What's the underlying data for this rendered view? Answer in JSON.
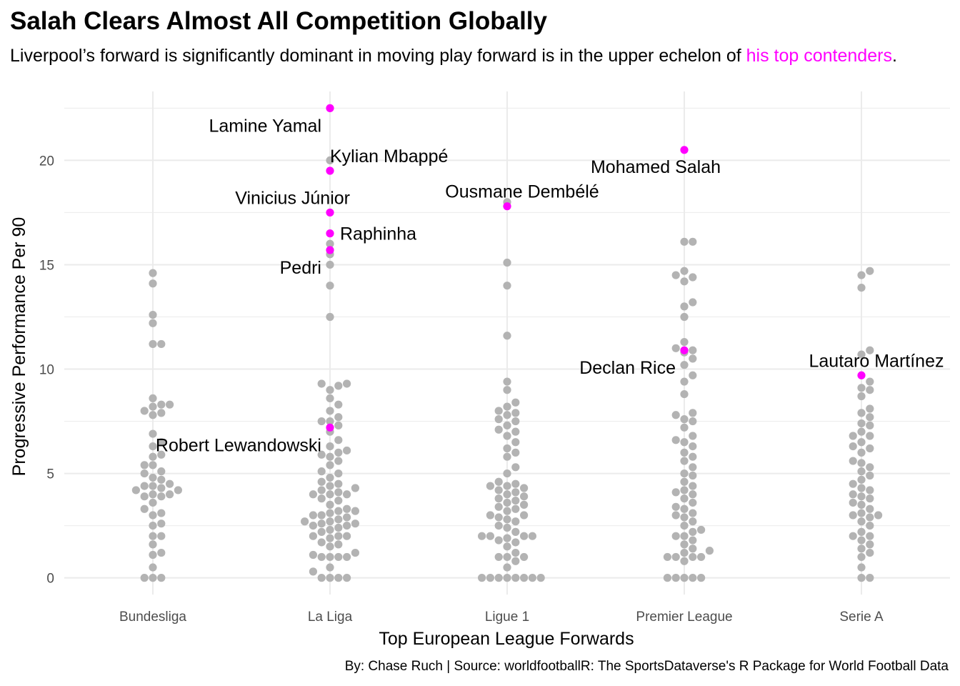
{
  "title": "Salah Clears Almost All Competition Globally",
  "subtitle": {
    "text": "Liverpool’s forward is significantly dominant in moving play forward is in the upper echelon of",
    "highlight": "his top contenders",
    "end": "."
  },
  "caption": "By: Chase Ruch | Source: worldfootballR: The SportsDataverse's R Package for World Football Data",
  "colors": {
    "base": "#b3b3b3",
    "highlight": "#ff00ff",
    "grid": "#ebebeb"
  },
  "chart_data": {
    "type": "scatter",
    "xlabel": "Top European League Forwards",
    "ylabel": "Progressive Performance Per 90",
    "categories": [
      "Bundesliga",
      "La Liga",
      "Ligue 1",
      "Premier League",
      "Serie A"
    ],
    "ylim": [
      -0.8,
      23.3
    ],
    "yticks": [
      0,
      5,
      10,
      15,
      20
    ],
    "grid": true,
    "legend": "none",
    "series": [
      {
        "category": "Bundesliga",
        "values": [
          14.6,
          14.1,
          12.6,
          12.2,
          11.2,
          11.2,
          8.6,
          8.3,
          8.3,
          8.2,
          8.0,
          7.9,
          7.8,
          6.9,
          6.5,
          6.3,
          5.9,
          5.8,
          5.4,
          5.4,
          5.1,
          5.0,
          4.8,
          4.7,
          4.5,
          4.4,
          4.4,
          4.3,
          4.2,
          4.2,
          4.0,
          4.0,
          3.9,
          3.9,
          3.6,
          3.3,
          3.1,
          3.0,
          2.6,
          2.5,
          2.0,
          2.0,
          1.6,
          1.2,
          1.1,
          0.5,
          0,
          0,
          0
        ]
      },
      {
        "category": "La Liga",
        "values": [
          20.0,
          16.0,
          15.5,
          15.0,
          14.0,
          12.5,
          9.3,
          9.3,
          9.2,
          9.0,
          8.6,
          8.3,
          8.0,
          7.7,
          7.5,
          7.5,
          7.3,
          7.0,
          6.6,
          6.3,
          6.1,
          6.0,
          5.9,
          5.8,
          5.6,
          5.4,
          5.1,
          5.0,
          4.8,
          4.6,
          4.5,
          4.4,
          4.3,
          4.2,
          4.1,
          4.0,
          4.0,
          4.0,
          3.8,
          3.7,
          3.5,
          3.3,
          3.2,
          3.2,
          3.1,
          3.0,
          3.0,
          2.9,
          2.8,
          2.7,
          2.7,
          2.6,
          2.6,
          2.5,
          2.5,
          2.4,
          2.3,
          2.2,
          2.0,
          2.0,
          2.0,
          1.9,
          1.7,
          1.6,
          1.5,
          1.2,
          1.1,
          1.0,
          1.0,
          1.0,
          1.0,
          0.5,
          0.3,
          0,
          0,
          0,
          0
        ]
      },
      {
        "category": "Ligue 1",
        "values": [
          18.0,
          15.1,
          14.0,
          11.6,
          9.4,
          9.0,
          8.4,
          8.2,
          8.0,
          7.9,
          7.8,
          7.6,
          7.5,
          7.3,
          7.1,
          7.0,
          6.8,
          6.5,
          6.2,
          6.0,
          5.8,
          5.3,
          5.0,
          4.6,
          4.5,
          4.4,
          4.4,
          4.3,
          4.2,
          4.1,
          4.0,
          3.9,
          3.8,
          3.7,
          3.6,
          3.5,
          3.4,
          3.3,
          3.2,
          3.0,
          3.0,
          2.9,
          2.8,
          2.7,
          2.5,
          2.4,
          2.2,
          2.0,
          2.0,
          2.0,
          2.0,
          1.9,
          1.8,
          1.7,
          1.5,
          1.2,
          1.0,
          1.0,
          1.0,
          0.8,
          0.5,
          0,
          0,
          0,
          0,
          0,
          0,
          0,
          0
        ]
      },
      {
        "category": "Premier League",
        "values": [
          16.1,
          16.1,
          14.7,
          14.5,
          14.4,
          14.2,
          13.2,
          13.0,
          12.5,
          11.3,
          11.0,
          10.9,
          10.8,
          10.5,
          10.2,
          9.7,
          9.4,
          8.8,
          7.9,
          7.8,
          7.6,
          7.5,
          7.2,
          6.8,
          6.6,
          6.5,
          6.3,
          6.0,
          5.8,
          5.6,
          5.3,
          5.0,
          4.9,
          4.6,
          4.4,
          4.2,
          4.1,
          4.0,
          3.8,
          3.6,
          3.4,
          3.3,
          3.1,
          3.0,
          2.9,
          2.7,
          2.5,
          2.3,
          2.2,
          2.0,
          2.0,
          1.8,
          1.6,
          1.4,
          1.3,
          1.2,
          1.0,
          1.0,
          1.0,
          1.0,
          0.8,
          0,
          0,
          0,
          0,
          0
        ]
      },
      {
        "category": "Serie A",
        "values": [
          14.7,
          14.5,
          13.9,
          10.9,
          10.7,
          9.4,
          9.1,
          9.0,
          8.7,
          8.1,
          7.9,
          7.7,
          7.4,
          7.3,
          7.0,
          6.8,
          6.8,
          6.5,
          6.3,
          6.2,
          6.0,
          5.6,
          5.5,
          5.3,
          5.1,
          4.9,
          4.7,
          4.5,
          4.3,
          4.2,
          4.0,
          3.9,
          3.8,
          3.6,
          3.5,
          3.3,
          3.1,
          3.0,
          3.0,
          2.9,
          2.7,
          2.5,
          2.2,
          2.0,
          2.0,
          1.8,
          1.6,
          1.4,
          1.2,
          1.0,
          0.5,
          0,
          0
        ]
      }
    ],
    "highlights": [
      {
        "name": "Lamine Yamal",
        "category": "La Liga",
        "value": 22.5,
        "label_pos": "left-below"
      },
      {
        "name": "Kylian Mbappé",
        "category": "La Liga",
        "value": 19.5,
        "label_pos": "right-above"
      },
      {
        "name": "Vinicius Júnior",
        "category": "La Liga",
        "value": 17.5,
        "label_pos": "left-above"
      },
      {
        "name": "Raphinha",
        "category": "La Liga",
        "value": 16.5,
        "label_pos": "right"
      },
      {
        "name": "Pedri",
        "category": "La Liga",
        "value": 15.7,
        "label_pos": "left-below"
      },
      {
        "name": "Robert Lewandowski",
        "category": "La Liga",
        "value": 7.2,
        "label_pos": "left-below"
      },
      {
        "name": "Ousmane Dembélé",
        "category": "Ligue 1",
        "value": 17.8,
        "label_pos": "center-above"
      },
      {
        "name": "Mohamed Salah",
        "category": "Premier League",
        "value": 20.5,
        "label_pos": "center-below"
      },
      {
        "name": "Declan Rice",
        "category": "Premier League",
        "value": 10.9,
        "label_pos": "left-below"
      },
      {
        "name": "Lautaro Martínez",
        "category": "Serie A",
        "value": 9.7,
        "label_pos": "center-above"
      }
    ]
  }
}
